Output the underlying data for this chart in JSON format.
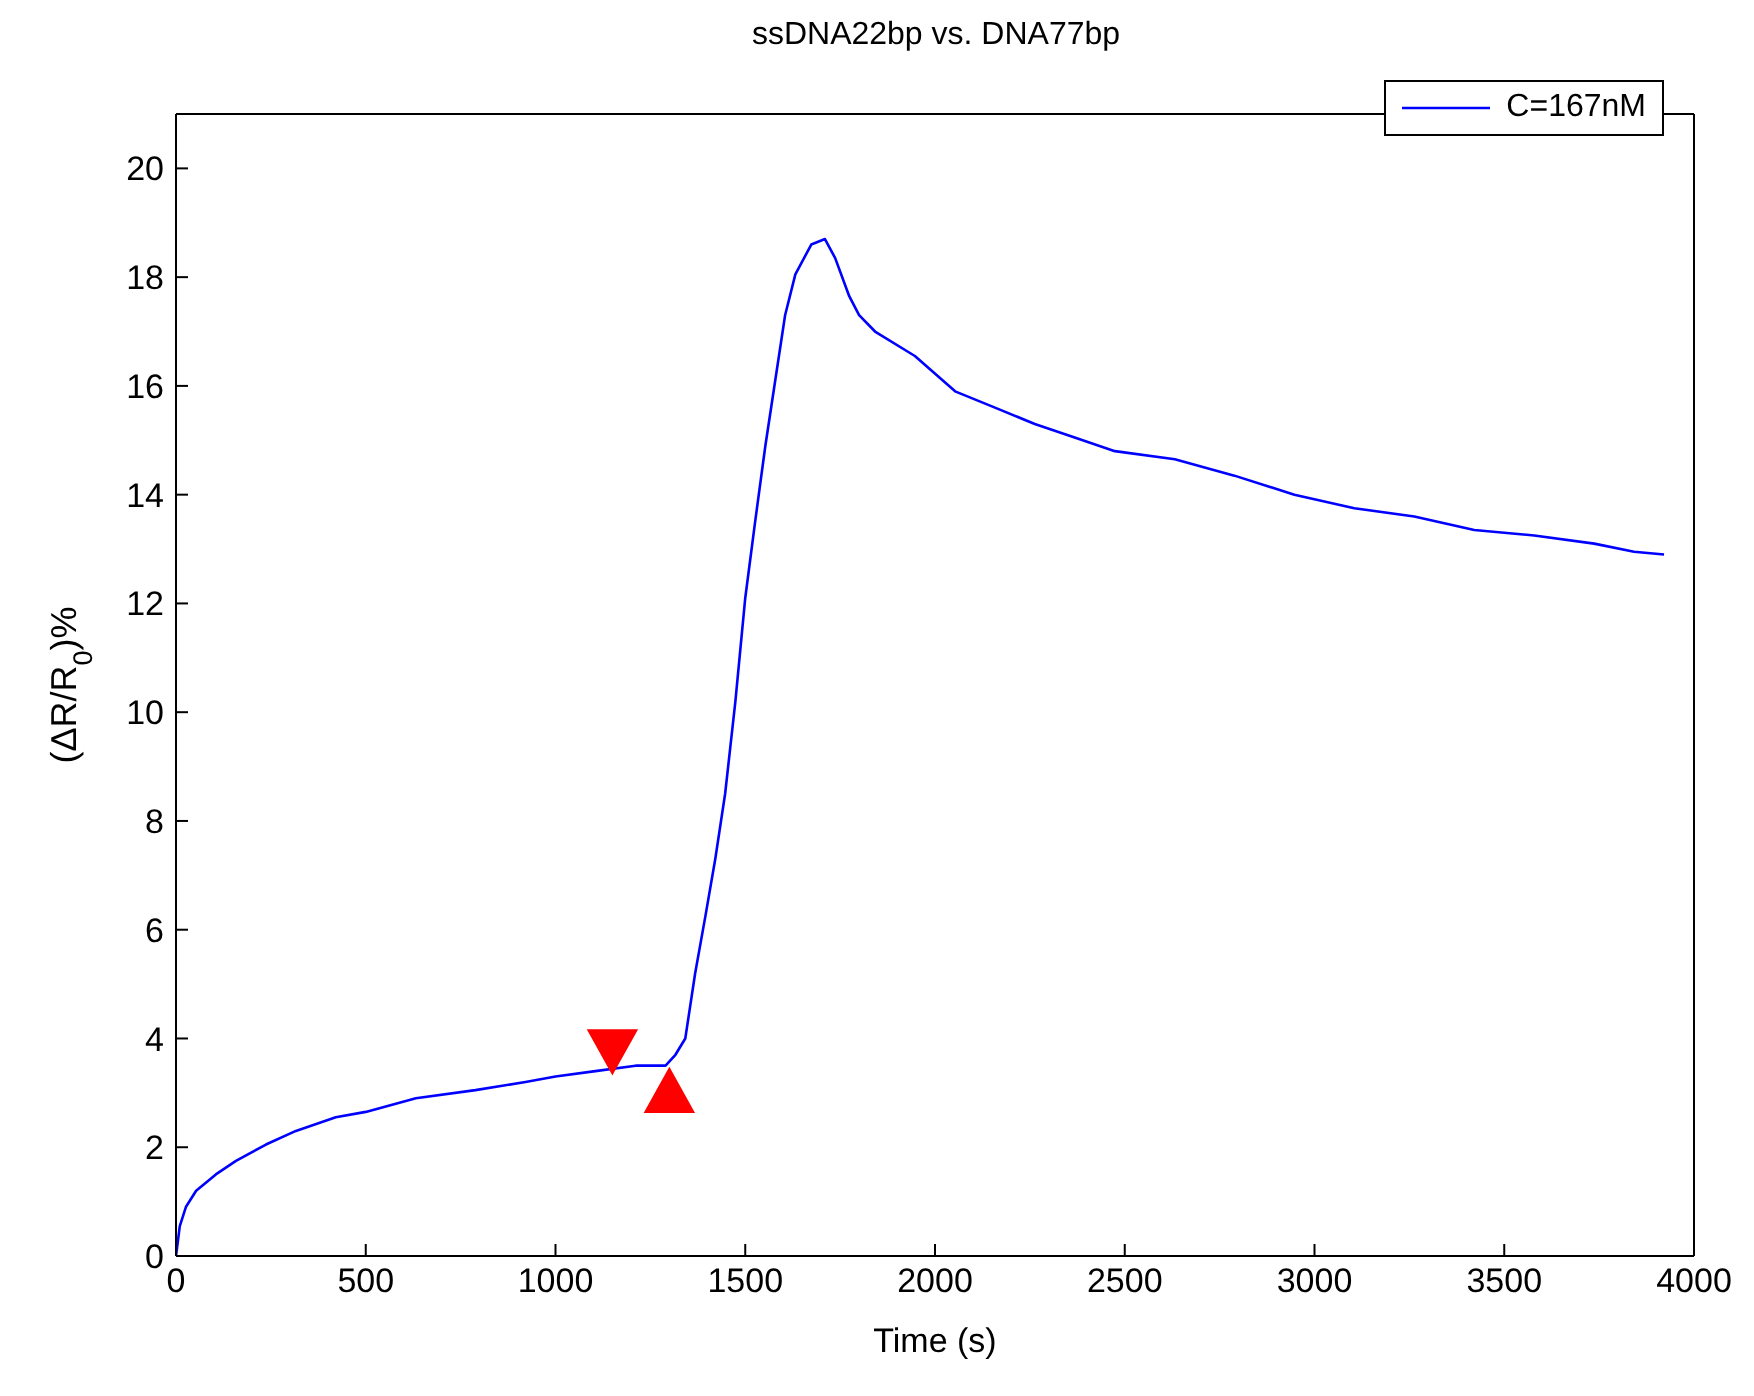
{
  "chart_data": {
    "type": "line",
    "title": "ssDNA22bp vs. DNA77bp",
    "xlabel": "Time (s)",
    "ylabel": "(ΔR/R$_{0}$)%",
    "xlim": [
      0,
      4000
    ],
    "ylim": [
      0,
      21
    ],
    "xticks": [
      0,
      500,
      1000,
      1500,
      2000,
      2500,
      3000,
      3500,
      4000
    ],
    "yticks": [
      0,
      2,
      4,
      6,
      8,
      10,
      12,
      14,
      16,
      18,
      20
    ],
    "legend": "top right",
    "marker": "none",
    "line_style": "solid",
    "series": [
      {
        "name": "C=167nM",
        "color": "#0000ff",
        "x": [
          0,
          10,
          26,
          53,
          105,
          158,
          237,
          316,
          421,
          500,
          632,
          789,
          921,
          1000,
          1105,
          1211,
          1290,
          1316,
          1342,
          1368,
          1395,
          1421,
          1447,
          1474,
          1500,
          1526,
          1553,
          1579,
          1605,
          1632,
          1674,
          1710,
          1737,
          1774,
          1800,
          1842,
          1947,
          2053,
          2158,
          2263,
          2368,
          2474,
          2632,
          2789,
          2947,
          3105,
          3263,
          3421,
          3579,
          3737,
          3842,
          3921
        ],
        "values": [
          0,
          0.55,
          0.9,
          1.2,
          1.5,
          1.75,
          2.05,
          2.3,
          2.55,
          2.65,
          2.9,
          3.05,
          3.2,
          3.3,
          3.4,
          3.5,
          3.5,
          3.7,
          4.0,
          5.2,
          6.25,
          7.3,
          8.5,
          10.2,
          12.1,
          13.5,
          14.9,
          16.1,
          17.3,
          18.05,
          18.6,
          18.7,
          18.35,
          17.65,
          17.3,
          17.0,
          16.55,
          15.9,
          15.6,
          15.3,
          15.05,
          14.8,
          14.65,
          14.35,
          14.0,
          13.75,
          13.6,
          13.35,
          13.25,
          13.1,
          12.95,
          12.9
        ]
      },
      {
        "type": "scatter",
        "color": "#ff0000",
        "marker": "triangle-down",
        "x": [
          1150
        ],
        "values": [
          3.8
        ]
      },
      {
        "type": "scatter",
        "color": "#ff0000",
        "marker": "triangle",
        "x": [
          1300
        ],
        "values": [
          3.0
        ]
      }
    ]
  }
}
